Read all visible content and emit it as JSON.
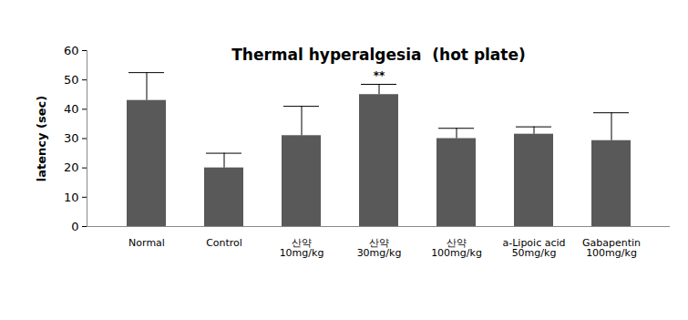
{
  "chart_data": {
    "type": "bar",
    "title": "Thermal hyperalgesia  (hot plate)",
    "y_label": "latency (sec)",
    "categories": [
      "Normal",
      "Control",
      "산약\n10mg/kg",
      "산약\n30mg/kg",
      "산약\n100mg/kg",
      "a-Lipoic acid\n50mg/kg",
      "Gabapentin\n100mg/kg"
    ],
    "values": [
      43,
      20,
      31,
      45,
      30,
      31.5,
      29.3
    ],
    "errors": [
      9.5,
      5,
      10,
      3.5,
      3.5,
      2.5,
      9.5
    ],
    "color": "#595959",
    "ylim": [
      0,
      60
    ],
    "yticks": [
      0,
      10,
      20,
      30,
      40,
      50,
      60
    ],
    "grid": false,
    "annotations": [
      {
        "category": "산약\n30mg/kg",
        "text": "**"
      }
    ]
  }
}
